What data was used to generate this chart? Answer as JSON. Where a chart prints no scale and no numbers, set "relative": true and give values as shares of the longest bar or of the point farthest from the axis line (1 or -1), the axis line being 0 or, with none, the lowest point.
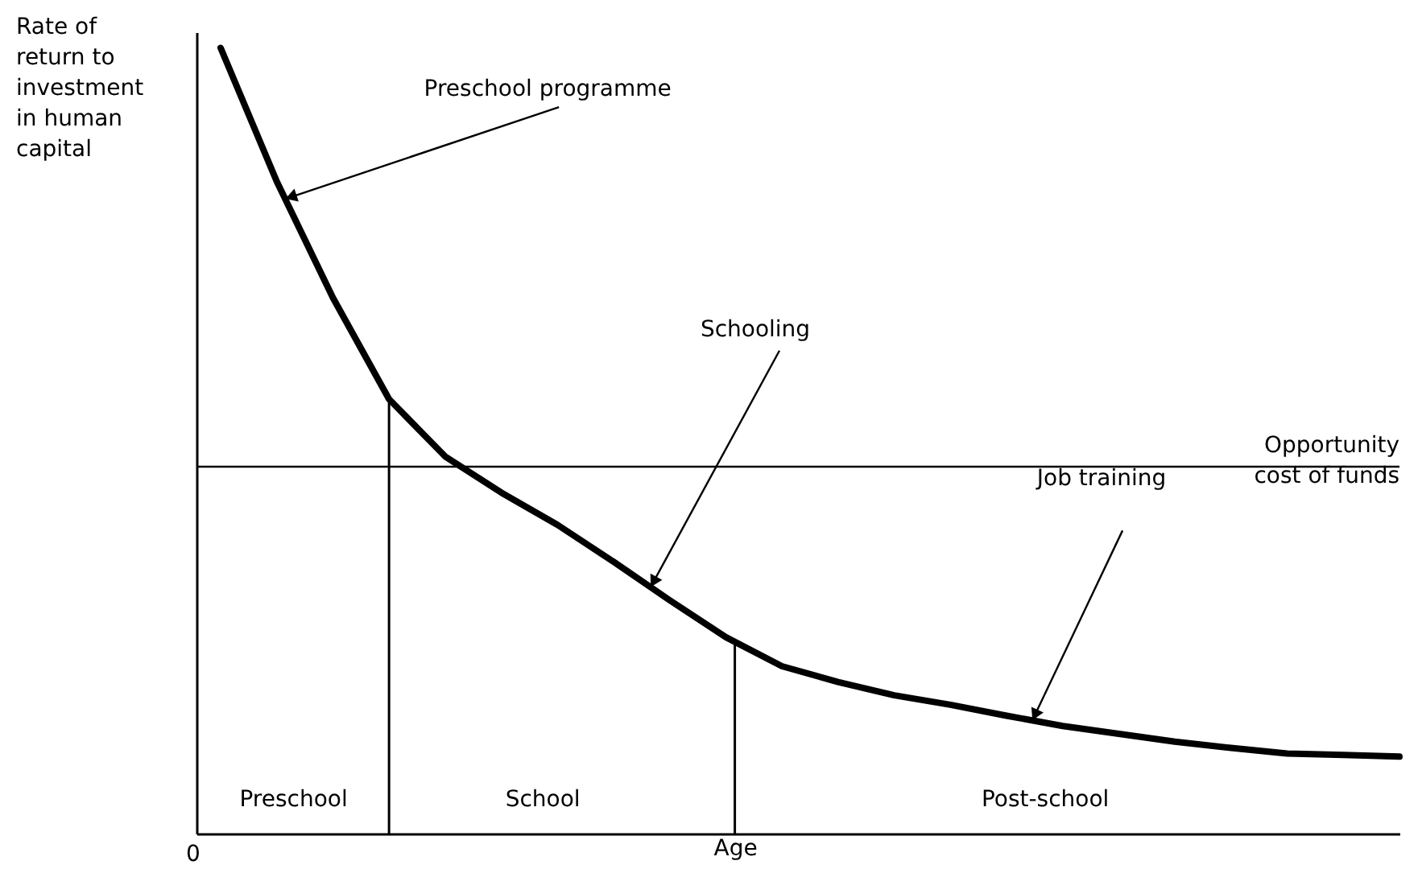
{
  "chart_data": {
    "type": "line",
    "relative": true,
    "xlabel": "Age",
    "ylabel": "Rate of return to investment in human capital",
    "categories": [
      null,
      null,
      null,
      null,
      null,
      null,
      null,
      null,
      null,
      null,
      null,
      null,
      null,
      null,
      null,
      null,
      null,
      null,
      null,
      null,
      null,
      null
    ],
    "tick_labels": false,
    "line_style": "solid",
    "series": [
      {
        "color": "#000000",
        "values": [
          1,
          0.83,
          0.682,
          0.553,
          0.48,
          0.434,
          0.393,
          0.346,
          0.297,
          0.25,
          0.213,
          0.193,
          0.176,
          0.164,
          0.15,
          0.137,
          0.127,
          0.117,
          0.109,
          0.102,
          0.1,
          0.098
        ]
      }
    ],
    "ref_lines": [
      {
        "axis": "y",
        "value": 0.467,
        "label": "Opportunity cost of funds",
        "color": "#000000"
      }
    ],
    "annotations": [
      "Preschool programme",
      "Schooling",
      "Job training",
      "Preschool",
      "School",
      "Post-school",
      "0"
    ]
  }
}
